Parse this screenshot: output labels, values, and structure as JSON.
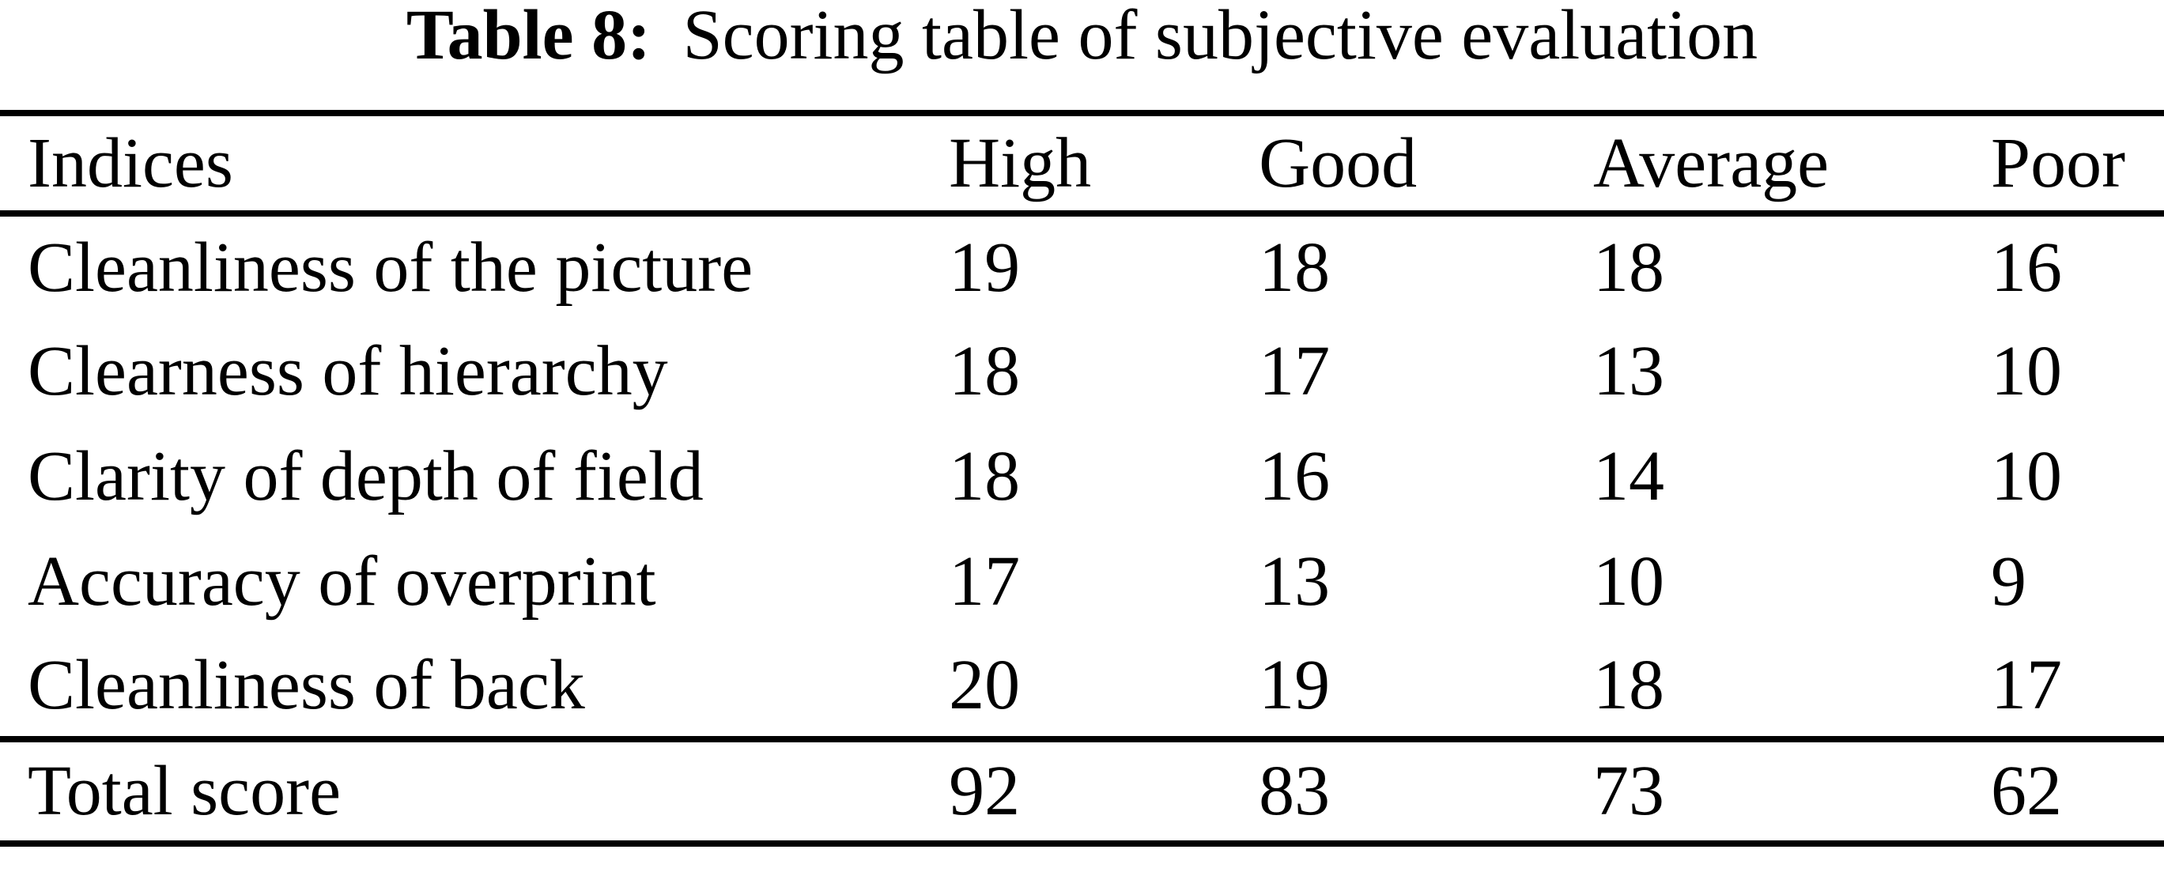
{
  "caption": {
    "label": "Table 8:",
    "text": "Scoring table of subjective evaluation"
  },
  "table": {
    "columns": [
      "Indices",
      "High",
      "Good",
      "Average",
      "Poor"
    ],
    "rows": [
      {
        "index": "Cleanliness of the picture",
        "values": [
          19,
          18,
          18,
          16
        ]
      },
      {
        "index": "Clearness of hierarchy",
        "values": [
          18,
          17,
          13,
          10
        ]
      },
      {
        "index": "Clarity of depth of field",
        "values": [
          18,
          16,
          14,
          10
        ]
      },
      {
        "index": "Accuracy of overprint",
        "values": [
          17,
          13,
          10,
          9
        ]
      },
      {
        "index": "Cleanliness of back",
        "values": [
          20,
          19,
          18,
          17
        ]
      }
    ],
    "total_row": {
      "index": "Total score",
      "values": [
        92,
        83,
        73,
        62
      ]
    }
  },
  "chart_data": {
    "type": "table",
    "title": "Table 8: Scoring table of subjective evaluation",
    "categories": [
      "High",
      "Good",
      "Average",
      "Poor"
    ],
    "series": [
      {
        "name": "Cleanliness of the picture",
        "values": [
          19,
          18,
          18,
          16
        ]
      },
      {
        "name": "Clearness of hierarchy",
        "values": [
          18,
          17,
          13,
          10
        ]
      },
      {
        "name": "Clarity of depth of field",
        "values": [
          18,
          16,
          14,
          10
        ]
      },
      {
        "name": "Accuracy of overprint",
        "values": [
          17,
          13,
          10,
          9
        ]
      },
      {
        "name": "Cleanliness of back",
        "values": [
          20,
          19,
          18,
          17
        ]
      },
      {
        "name": "Total score",
        "values": [
          92,
          83,
          73,
          62
        ]
      }
    ]
  },
  "colors": {
    "text": "#000000",
    "background": "#ffffff",
    "rule": "#000000"
  }
}
